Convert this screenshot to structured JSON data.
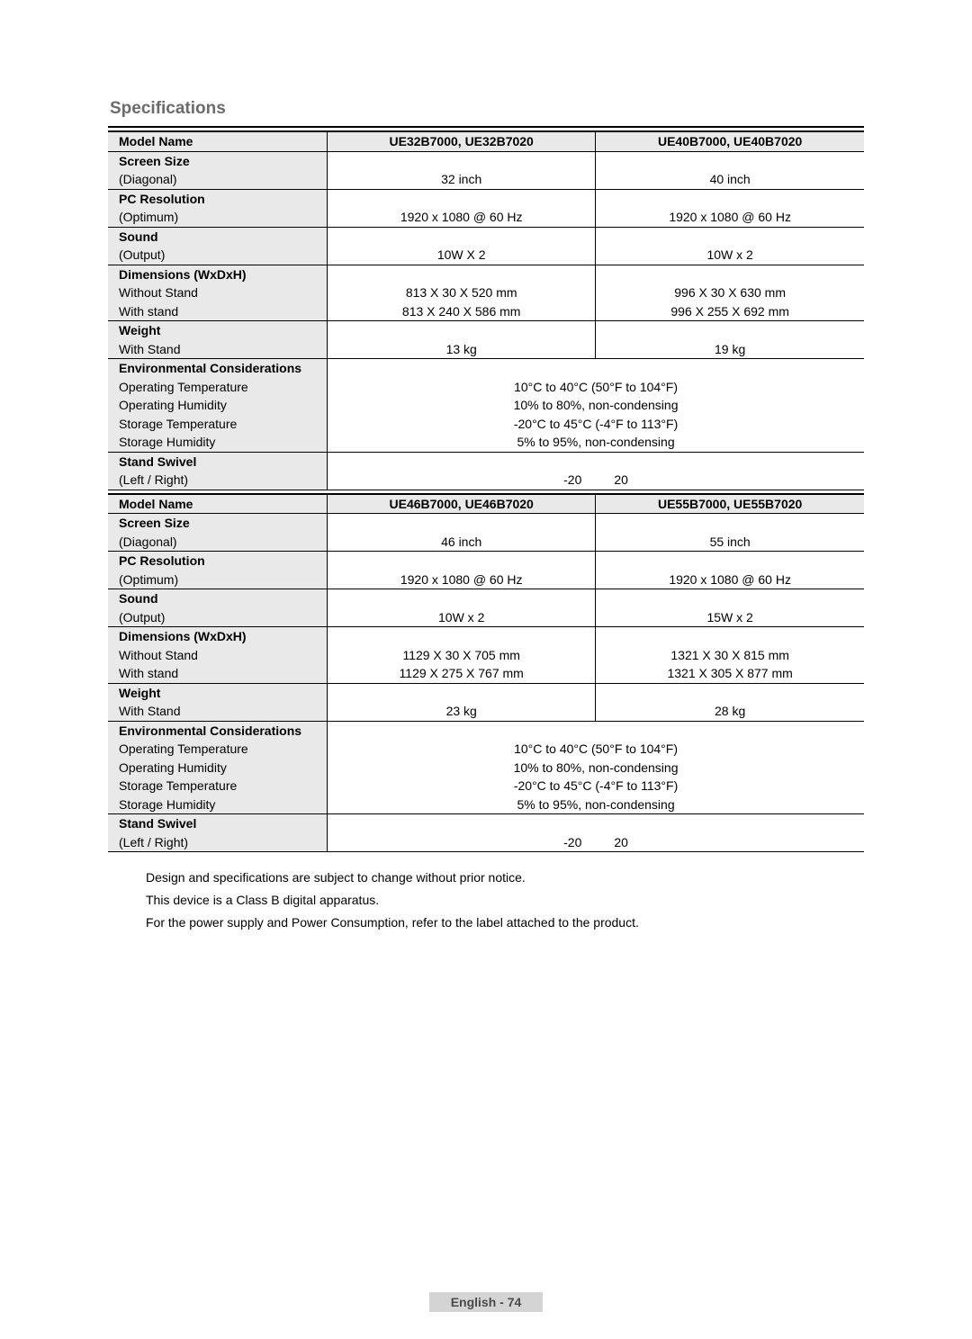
{
  "title": "Specifications",
  "labels": {
    "model_name": "Model Name",
    "screen_size": "Screen Size",
    "screen_size_sub": "(Diagonal)",
    "pc_resolution": "PC Resolution",
    "pc_resolution_sub": "(Optimum)",
    "sound": "Sound",
    "sound_sub": "(Output)",
    "dimensions": "Dimensions (WxDxH)",
    "dim_no_stand": "Without Stand",
    "dim_with_stand": "With stand",
    "weight": "Weight",
    "weight_with_stand": "With Stand",
    "env": "Environmental Considerations",
    "env_op_temp": "Operating Temperature",
    "env_op_hum": "Operating Humidity",
    "env_st_temp": "Storage Temperature",
    "env_st_hum": "Storage Humidity",
    "stand_swivel": "Stand Swivel",
    "stand_swivel_sub": "(Left / Right)"
  },
  "table1": {
    "model_a": "UE32B7000, UE32B7020",
    "model_b": "UE40B7000, UE40B7020",
    "screen_a": "32 inch",
    "screen_b": "40 inch",
    "pcres_a": "1920 x 1080 @ 60 Hz",
    "pcres_b": "1920 x 1080 @ 60 Hz",
    "sound_a": "10W X 2",
    "sound_b": "10W x 2",
    "dim_no_a": "813 X 30 X 520 mm",
    "dim_no_b": "996 X 30 X 630 mm",
    "dim_with_a": "813 X 240 X 586 mm",
    "dim_with_b": "996 X 255 X 692 mm",
    "weight_a": "13 kg",
    "weight_b": "19 kg",
    "env_op_temp": "10°C to 40°C (50°F to 104°F)",
    "env_op_hum": "10% to 80%, non-condensing",
    "env_st_temp": "-20°C to 45°C (-4°F to 113°F)",
    "env_st_hum": "5% to 95%, non-condensing",
    "swivel_l": "-20",
    "swivel_r": "20"
  },
  "table2": {
    "model_a": "UE46B7000, UE46B7020",
    "model_b": "UE55B7000, UE55B7020",
    "screen_a": "46 inch",
    "screen_b": "55 inch",
    "pcres_a": "1920 x 1080 @ 60 Hz",
    "pcres_b": "1920 x 1080 @ 60 Hz",
    "sound_a": "10W x 2",
    "sound_b": "15W x 2",
    "dim_no_a": "1129 X 30 X 705 mm",
    "dim_no_b": "1321 X 30 X 815 mm",
    "dim_with_a": "1129 X 275 X 767 mm",
    "dim_with_b": "1321 X 305 X 877 mm",
    "weight_a": "23 kg",
    "weight_b": "28 kg",
    "env_op_temp": "10°C to 40°C (50°F to 104°F)",
    "env_op_hum": "10% to 80%, non-condensing",
    "env_st_temp": "-20°C to 45°C (-4°F to 113°F)",
    "env_st_hum": "5% to 95%, non-condensing",
    "swivel_l": "-20",
    "swivel_r": "20"
  },
  "notes": {
    "n1": "Design and specifications are subject to change without prior notice.",
    "n2": "This device is a Class B digital apparatus.",
    "n3": "For the power supply and Power Consumption, refer to the label attached to the product."
  },
  "footer": "English - 74",
  "colors": {
    "title": "#6b6b6b",
    "header_bg": "#e9e9e9",
    "footer_bg": "#d4d4d4",
    "footer_text": "#4a4a4a",
    "text": "#000000",
    "border": "#000000"
  }
}
